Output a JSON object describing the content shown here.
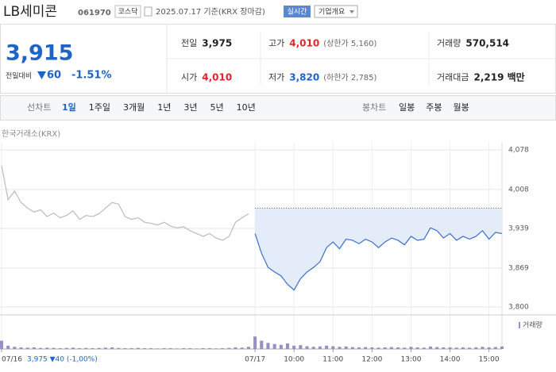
{
  "header": {
    "name": "LB세미콘",
    "code": "061970",
    "market": "코스닥",
    "date_note": "2025.07.17 기준(KRX 장마감)",
    "realtime": "실시간",
    "company_button": "기업개요"
  },
  "summary": {
    "price": "3,915",
    "change_label": "전일대비",
    "change": "60",
    "change_pct": "-1.51%",
    "rows": [
      [
        {
          "label": "전일",
          "value": "3,975"
        },
        {
          "label": "고가",
          "value": "4,010",
          "note": "(상한가 5,160)"
        },
        {
          "label": "거래량",
          "value": "570,514"
        }
      ],
      [
        {
          "label": "시가",
          "value": "4,010"
        },
        {
          "label": "저가",
          "value": "3,820",
          "note": "(하한가 2,785)"
        },
        {
          "label": "거래대금",
          "value": "2,219 백만"
        }
      ]
    ]
  },
  "tabs": {
    "line_label": "선차트",
    "line_tabs": [
      "1일",
      "1주일",
      "3개월",
      "1년",
      "3년",
      "5년",
      "10년"
    ],
    "active_tab": 0,
    "candle_label": "봉차트",
    "candle_tabs": [
      "일봉",
      "주봉",
      "월봉"
    ]
  },
  "chart_source": "한국거래소(KRX)",
  "chart_data": {
    "type": "line",
    "series": [
      {
        "name": "07/16",
        "color": "#bbbbbb",
        "values": [
          4050,
          3990,
          4005,
          3985,
          3975,
          3968,
          3972,
          3960,
          3966,
          3958,
          3962,
          3970,
          3955,
          3962,
          3960,
          3965,
          3975,
          3985,
          3982,
          3960,
          3955,
          3958,
          3950,
          3948,
          3945,
          3950,
          3943,
          3940,
          3942,
          3935,
          3930,
          3925,
          3930,
          3922,
          3918,
          3925,
          3950,
          3958,
          3965,
          null,
          null,
          null,
          null,
          null,
          null,
          null,
          null,
          null,
          null,
          null,
          null,
          null,
          null,
          null,
          null,
          null,
          null,
          null,
          null,
          null,
          null,
          null,
          null,
          null,
          null,
          null,
          null,
          null,
          null,
          null,
          null,
          null,
          null,
          null,
          null,
          null,
          null,
          null
        ]
      },
      {
        "name": "07/17",
        "color": "#3a6fc8",
        "values": [
          null,
          null,
          null,
          null,
          null,
          null,
          null,
          null,
          null,
          null,
          null,
          null,
          null,
          null,
          null,
          null,
          null,
          null,
          null,
          null,
          null,
          null,
          null,
          null,
          null,
          null,
          null,
          null,
          null,
          null,
          null,
          null,
          null,
          null,
          null,
          null,
          null,
          null,
          null,
          3930,
          3895,
          3870,
          3862,
          3855,
          3840,
          3830,
          3850,
          3862,
          3870,
          3880,
          3905,
          3915,
          3903,
          3920,
          3918,
          3912,
          3920,
          3915,
          3905,
          3915,
          3922,
          3918,
          3910,
          3925,
          3918,
          3920,
          3940,
          3935,
          3922,
          3930,
          3918,
          3925,
          3920,
          3925,
          3935,
          3920,
          3932,
          3930
        ]
      }
    ],
    "ref_line": 3975,
    "area_color": "#e3ecf8",
    "xlim": [
      0,
      77
    ],
    "xticks": [
      {
        "value": 0,
        "label": "07/16"
      },
      {
        "value": 39,
        "label": "07/17"
      },
      {
        "value": 45,
        "label": "10:00"
      },
      {
        "value": 51,
        "label": "11:00"
      },
      {
        "value": 57,
        "label": "12:00"
      },
      {
        "value": 63,
        "label": "13:00"
      },
      {
        "value": 69,
        "label": "14:00"
      },
      {
        "value": 75,
        "label": "15:00"
      }
    ],
    "ylim": [
      3800,
      4078
    ],
    "yticks": [
      {
        "value": 3800,
        "label": "3,800"
      },
      {
        "value": 3869,
        "label": "3,869"
      },
      {
        "value": 3939,
        "label": "3,939"
      },
      {
        "value": 4008,
        "label": "4,008"
      },
      {
        "value": 4078,
        "label": "4,078"
      }
    ],
    "grid": true,
    "volume": {
      "name": "거래량",
      "color": "#9a8fc4",
      "ylim": [
        0,
        100
      ],
      "values": [
        30,
        12,
        8,
        6,
        5,
        6,
        4,
        5,
        4,
        3,
        4,
        5,
        3,
        4,
        3,
        4,
        5,
        6,
        4,
        3,
        3,
        4,
        3,
        3,
        2,
        3,
        3,
        2,
        3,
        3,
        2,
        3,
        3,
        2,
        3,
        4,
        6,
        5,
        8,
        45,
        30,
        22,
        18,
        15,
        20,
        12,
        14,
        10,
        8,
        9,
        12,
        10,
        8,
        9,
        7,
        6,
        7,
        6,
        5,
        6,
        7,
        6,
        5,
        8,
        6,
        5,
        9,
        7,
        6,
        6,
        5,
        6,
        5,
        6,
        8,
        6,
        7,
        9
      ]
    },
    "footer": "3,975 ▼40 (-1,00%)"
  }
}
